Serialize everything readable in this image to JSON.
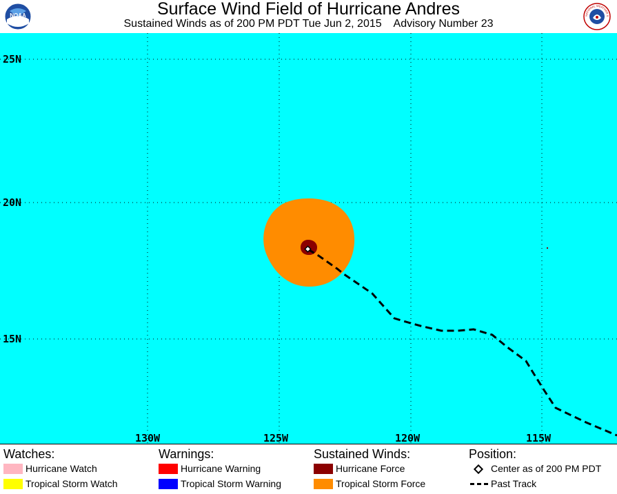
{
  "header": {
    "title": "Surface Wind Field of Hurricane Andres",
    "subtitle": "Sustained Winds as of 200 PM PDT Tue Jun 2, 2015    Advisory Number 23",
    "logo_left_text": "NOAA",
    "logo_right_text": "NATIONAL WEATHER SERVICE"
  },
  "map": {
    "colors": {
      "ocean": "#00ffff",
      "tropical_storm_force": "#ff8c00",
      "hurricane_force": "#8b0000",
      "grid": "#000000"
    },
    "lat_labels": [
      "25N",
      "20N",
      "15N"
    ],
    "lon_labels": [
      "130W",
      "125W",
      "120W",
      "115W"
    ],
    "center": {
      "lat": 18.4,
      "lon": 123.7
    },
    "past_track": [
      {
        "lat": 18.4,
        "lon": 123.7
      },
      {
        "lat": 17.8,
        "lon": 122.4
      },
      {
        "lat": 16.9,
        "lon": 121.3
      },
      {
        "lat": 15.8,
        "lon": 120.6
      },
      {
        "lat": 15.5,
        "lon": 119.9
      },
      {
        "lat": 15.3,
        "lon": 118.9
      },
      {
        "lat": 15.4,
        "lon": 117.7
      },
      {
        "lat": 15.2,
        "lon": 116.8
      },
      {
        "lat": 14.3,
        "lon": 115.8
      },
      {
        "lat": 13.2,
        "lon": 115.1
      },
      {
        "lat": 12.4,
        "lon": 114.5
      },
      {
        "lat": 11.8,
        "lon": 112.8
      },
      {
        "lat": 11.5,
        "lon": 112.0
      }
    ]
  },
  "legend": {
    "watches": {
      "heading": "Watches:",
      "items": [
        {
          "label": "Hurricane Watch",
          "color": "#ffb6c1"
        },
        {
          "label": "Tropical Storm Watch",
          "color": "#ffff00"
        }
      ]
    },
    "warnings": {
      "heading": "Warnings:",
      "items": [
        {
          "label": "Hurricane Warning",
          "color": "#ff0000"
        },
        {
          "label": "Tropical Storm Warning",
          "color": "#0000ff"
        }
      ]
    },
    "winds": {
      "heading": "Sustained Winds:",
      "items": [
        {
          "label": "Hurricane Force",
          "color": "#8b0000"
        },
        {
          "label": "Tropical Storm Force",
          "color": "#ff8c00"
        }
      ]
    },
    "position": {
      "heading": "Position:",
      "center_label": "Center as of 200 PM PDT",
      "track_label": "Past Track"
    }
  }
}
